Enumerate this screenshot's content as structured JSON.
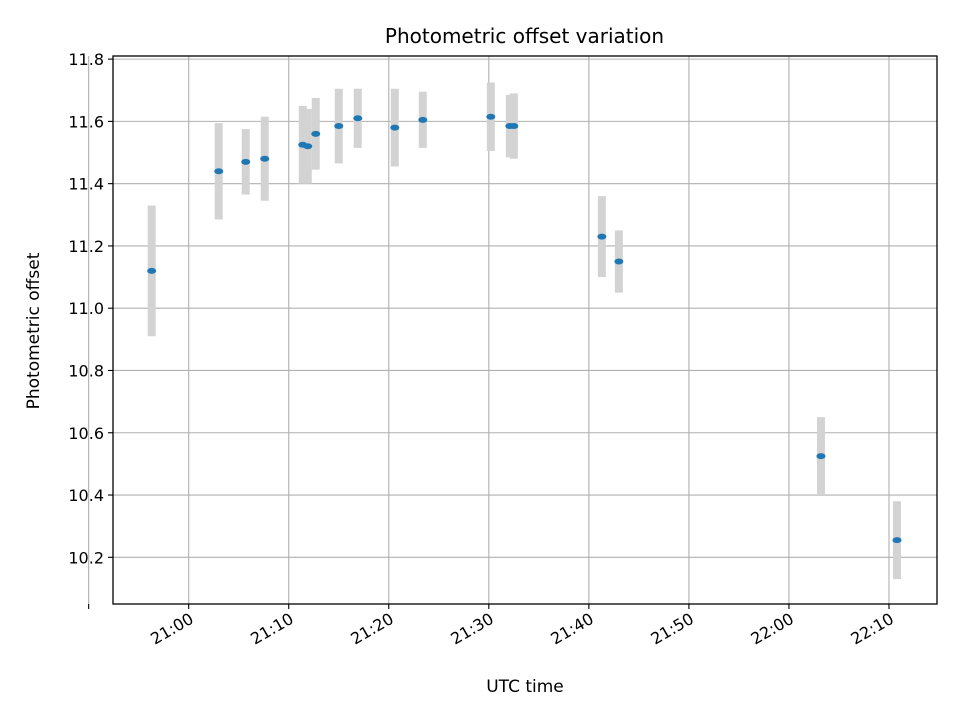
{
  "chart_data": {
    "type": "scatter",
    "title": "Photometric offset variation",
    "xlabel": "UTC time",
    "ylabel": "Photometric offset",
    "x_ticks": [
      "20:50",
      "21:00",
      "21:10",
      "21:20",
      "21:30",
      "21:40",
      "21:50",
      "22:00",
      "22:10"
    ],
    "x_tick_labels": [
      "",
      "21:00",
      "21:10",
      "21:20",
      "21:30",
      "21:40",
      "21:50",
      "22:00",
      "22:10"
    ],
    "xlim": [
      "20:52:26",
      "22:14:48"
    ],
    "y_ticks": [
      10.2,
      10.4,
      10.6,
      10.8,
      11.0,
      11.2,
      11.4,
      11.6,
      11.8
    ],
    "y_tick_labels": [
      "10.2",
      "10.4",
      "10.6",
      "10.8",
      "11.0",
      "11.2",
      "11.4",
      "11.6",
      "11.8"
    ],
    "ylim": [
      10.05,
      11.81
    ],
    "grid": true,
    "colors": {
      "marker": "#1f77b4",
      "error_bar": "#d3d3d3",
      "grid": "#b0b0b0"
    },
    "points": [
      {
        "x": "20:56:18",
        "y": 11.12,
        "err": 0.21
      },
      {
        "x": "21:03:00",
        "y": 11.44,
        "err": 0.155
      },
      {
        "x": "21:05:42",
        "y": 11.47,
        "err": 0.105
      },
      {
        "x": "21:07:36",
        "y": 11.48,
        "err": 0.135
      },
      {
        "x": "21:11:24",
        "y": 11.525,
        "err": 0.125
      },
      {
        "x": "21:11:54",
        "y": 11.52,
        "err": 0.12
      },
      {
        "x": "21:12:42",
        "y": 11.56,
        "err": 0.115
      },
      {
        "x": "21:15:00",
        "y": 11.585,
        "err": 0.12
      },
      {
        "x": "21:16:54",
        "y": 11.61,
        "err": 0.095
      },
      {
        "x": "21:20:36",
        "y": 11.58,
        "err": 0.125
      },
      {
        "x": "21:23:24",
        "y": 11.605,
        "err": 0.09
      },
      {
        "x": "21:30:12",
        "y": 11.615,
        "err": 0.11
      },
      {
        "x": "21:32:06",
        "y": 11.585,
        "err": 0.1
      },
      {
        "x": "21:32:30",
        "y": 11.585,
        "err": 0.105
      },
      {
        "x": "21:41:18",
        "y": 11.23,
        "err": 0.13
      },
      {
        "x": "21:43:00",
        "y": 11.15,
        "err": 0.1
      },
      {
        "x": "22:03:12",
        "y": 10.525,
        "err": 0.125
      },
      {
        "x": "22:10:48",
        "y": 10.255,
        "err": 0.125
      }
    ]
  }
}
